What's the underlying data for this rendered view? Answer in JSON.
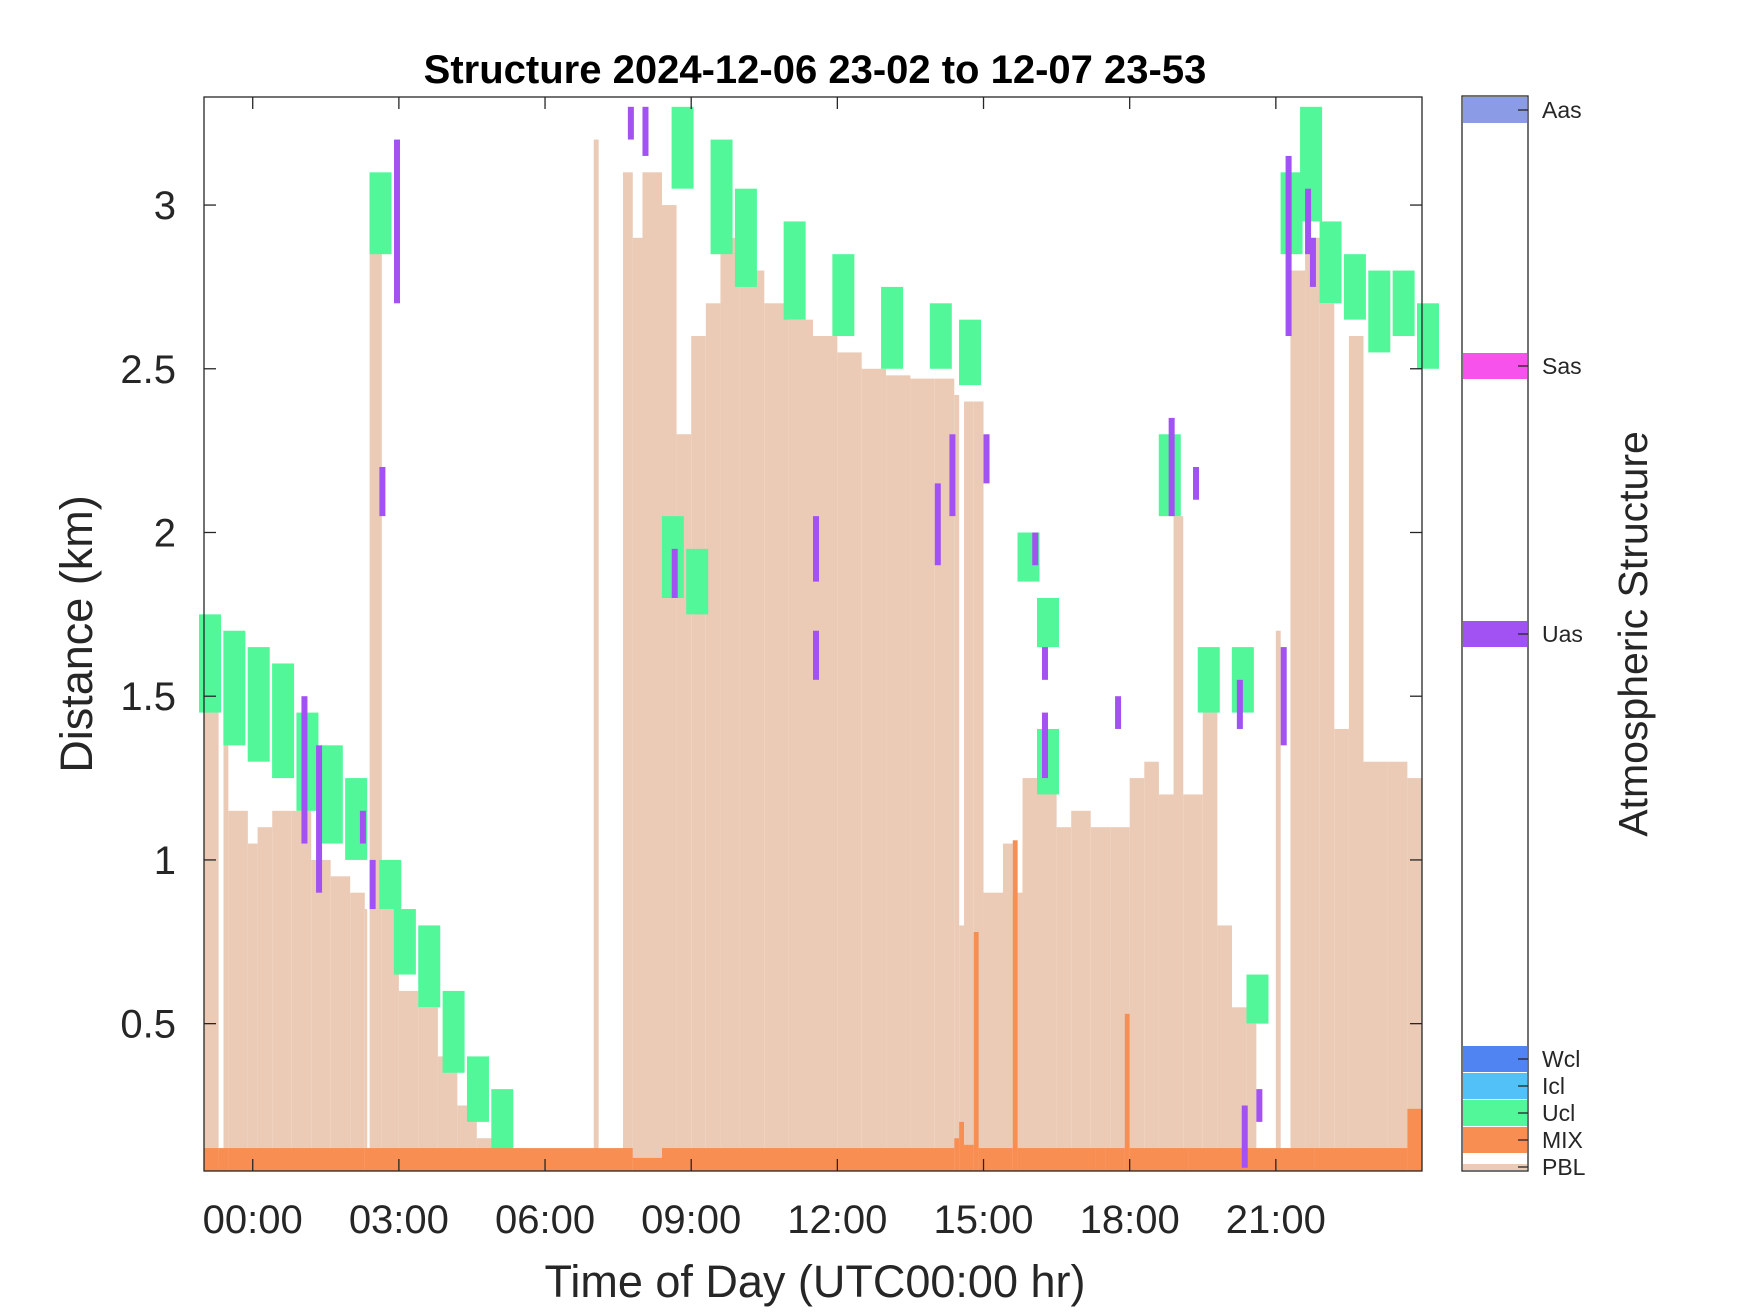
{
  "chart_data": {
    "type": "area",
    "title": "Structure 2024-12-06 23-02 to 12-07 23-53",
    "xlabel": "Time of Day (UTC00:00 hr)",
    "ylabel": "Distance (km)",
    "colorbar_label": "Atmospheric Structure",
    "x_units": "hours since 2024-12-07 00:00 UTC",
    "xlim": [
      -1.0,
      24.0
    ],
    "ylim": [
      0.05,
      3.33
    ],
    "x_ticks": [
      0,
      3,
      6,
      9,
      12,
      15,
      18,
      21
    ],
    "x_tick_labels": [
      "00:00",
      "03:00",
      "06:00",
      "09:00",
      "12:00",
      "15:00",
      "18:00",
      "21:00"
    ],
    "y_ticks": [
      0.5,
      1,
      1.5,
      2,
      2.5,
      3
    ],
    "y_tick_labels": [
      "0.5",
      "1",
      "1.5",
      "2",
      "2.5",
      "3"
    ],
    "legend_placement": "right colorbar",
    "classes": [
      {
        "name": "PBL",
        "color": "#EBCBB6"
      },
      {
        "name": "MIX",
        "color": "#F88E52"
      },
      {
        "name": "Ucl",
        "color": "#52F79A"
      },
      {
        "name": "Icl",
        "color": "#52C1F7"
      },
      {
        "name": "Wcl",
        "color": "#5084F2"
      },
      {
        "name": "Uas",
        "color": "#A252F2"
      },
      {
        "name": "Sas",
        "color": "#F752EB"
      },
      {
        "name": "Aas",
        "color": "#8C9BE6"
      }
    ],
    "pbl_top_km": [
      [
        -1.0,
        1.55
      ],
      [
        -0.7,
        0.1
      ],
      [
        -0.6,
        1.5
      ],
      [
        -0.5,
        1.15
      ],
      [
        -0.1,
        1.05
      ],
      [
        0.1,
        1.1
      ],
      [
        0.4,
        1.15
      ],
      [
        0.8,
        1.15
      ],
      [
        1.2,
        1.0
      ],
      [
        1.6,
        0.95
      ],
      [
        2.0,
        0.9
      ],
      [
        2.3,
        0.85
      ],
      [
        2.35,
        0.1
      ],
      [
        2.4,
        3.0
      ],
      [
        2.65,
        0.9
      ],
      [
        3.0,
        0.6
      ],
      [
        3.4,
        0.55
      ],
      [
        3.8,
        0.4
      ],
      [
        4.2,
        0.25
      ],
      [
        4.6,
        0.15
      ],
      [
        5.0,
        0.12
      ],
      [
        5.5,
        0.07
      ],
      [
        5.8,
        0.06
      ],
      [
        6.0,
        null
      ],
      [
        7.0,
        3.2
      ],
      [
        7.1,
        null
      ],
      [
        7.6,
        3.1
      ],
      [
        7.8,
        2.9
      ],
      [
        8.0,
        3.1
      ],
      [
        8.4,
        3.0
      ],
      [
        8.7,
        2.3
      ],
      [
        9.0,
        2.6
      ],
      [
        9.3,
        2.7
      ],
      [
        9.6,
        2.9
      ],
      [
        10.0,
        2.8
      ],
      [
        10.5,
        2.7
      ],
      [
        11.0,
        2.65
      ],
      [
        11.5,
        2.6
      ],
      [
        12.0,
        2.55
      ],
      [
        12.5,
        2.5
      ],
      [
        13.0,
        2.48
      ],
      [
        13.5,
        2.47
      ],
      [
        14.0,
        2.47
      ],
      [
        14.4,
        2.42
      ],
      [
        14.5,
        0.8
      ],
      [
        14.6,
        2.4
      ],
      [
        14.8,
        2.4
      ],
      [
        15.0,
        0.9
      ],
      [
        15.4,
        1.05
      ],
      [
        15.6,
        0.9
      ],
      [
        15.8,
        1.25
      ],
      [
        16.2,
        1.35
      ],
      [
        16.5,
        1.1
      ],
      [
        16.8,
        1.15
      ],
      [
        17.2,
        1.1
      ],
      [
        17.6,
        1.1
      ],
      [
        18.0,
        1.25
      ],
      [
        18.3,
        1.3
      ],
      [
        18.6,
        1.2
      ],
      [
        18.9,
        2.05
      ],
      [
        19.1,
        1.2
      ],
      [
        19.5,
        1.5
      ],
      [
        19.8,
        0.8
      ],
      [
        20.1,
        0.55
      ],
      [
        20.4,
        0.5
      ],
      [
        20.6,
        0.1
      ],
      [
        20.8,
        0.1
      ],
      [
        21.0,
        1.7
      ],
      [
        21.1,
        0.1
      ],
      [
        21.3,
        2.8
      ],
      [
        21.6,
        2.9
      ],
      [
        21.9,
        2.7
      ],
      [
        22.2,
        1.4
      ],
      [
        22.5,
        2.6
      ],
      [
        22.8,
        1.3
      ],
      [
        23.3,
        1.3
      ],
      [
        23.7,
        1.25
      ],
      [
        24.0,
        1.2
      ]
    ],
    "mix_top_km": [
      [
        -1.0,
        0.12
      ],
      [
        -0.7,
        0.12
      ],
      [
        -0.5,
        0.12
      ],
      [
        2.3,
        0.12
      ],
      [
        3.7,
        0.12
      ],
      [
        7.8,
        0.09
      ],
      [
        8.4,
        0.12
      ],
      [
        14.4,
        0.15
      ],
      [
        14.5,
        0.2
      ],
      [
        14.6,
        0.13
      ],
      [
        14.8,
        0.78
      ],
      [
        14.9,
        0.12
      ],
      [
        15.6,
        1.06
      ],
      [
        15.7,
        0.12
      ],
      [
        17.3,
        0.12
      ],
      [
        17.5,
        0.12
      ],
      [
        17.9,
        0.53
      ],
      [
        18.0,
        0.12
      ],
      [
        19.2,
        0.12
      ],
      [
        20.4,
        0.12
      ],
      [
        21.8,
        0.12
      ],
      [
        23.7,
        0.24
      ],
      [
        24.0,
        0.12
      ]
    ],
    "ucl_bands_km": [
      [
        -1.0,
        1.45,
        1.75
      ],
      [
        -0.5,
        1.35,
        1.7
      ],
      [
        0.0,
        1.3,
        1.65
      ],
      [
        0.5,
        1.25,
        1.6
      ],
      [
        1.0,
        1.15,
        1.45
      ],
      [
        1.5,
        1.05,
        1.35
      ],
      [
        2.0,
        1.0,
        1.25
      ],
      [
        2.5,
        2.85,
        3.1
      ],
      [
        2.7,
        0.85,
        1.0
      ],
      [
        3.0,
        0.65,
        0.85
      ],
      [
        3.5,
        0.55,
        0.8
      ],
      [
        4.0,
        0.35,
        0.6
      ],
      [
        4.5,
        0.2,
        0.4
      ],
      [
        5.0,
        0.1,
        0.3
      ],
      [
        8.5,
        1.8,
        2.05
      ],
      [
        8.7,
        3.05,
        3.3
      ],
      [
        9.0,
        1.75,
        1.95
      ],
      [
        9.5,
        2.85,
        3.2
      ],
      [
        10.0,
        2.75,
        3.05
      ],
      [
        11.0,
        2.65,
        2.95
      ],
      [
        12.0,
        2.6,
        2.85
      ],
      [
        13.0,
        2.5,
        2.75
      ],
      [
        14.0,
        2.5,
        2.7
      ],
      [
        14.6,
        2.45,
        2.65
      ],
      [
        15.8,
        1.85,
        2.0
      ],
      [
        16.2,
        1.65,
        1.8
      ],
      [
        16.2,
        1.2,
        1.4
      ],
      [
        18.7,
        2.05,
        2.3
      ],
      [
        19.5,
        1.45,
        1.65
      ],
      [
        20.2,
        1.45,
        1.65
      ],
      [
        20.5,
        0.5,
        0.65
      ],
      [
        21.2,
        2.85,
        3.1
      ],
      [
        21.6,
        2.95,
        3.3
      ],
      [
        22.0,
        2.7,
        2.95
      ],
      [
        22.5,
        2.65,
        2.85
      ],
      [
        23.0,
        2.55,
        2.8
      ],
      [
        23.5,
        2.6,
        2.8
      ],
      [
        24.0,
        2.5,
        2.7
      ]
    ],
    "uas_segments_km": [
      [
        1.0,
        1.05,
        1.5
      ],
      [
        1.3,
        0.9,
        1.35
      ],
      [
        2.2,
        1.05,
        1.15
      ],
      [
        2.4,
        0.85,
        1.0
      ],
      [
        2.6,
        2.05,
        2.2
      ],
      [
        2.9,
        2.7,
        3.2
      ],
      [
        7.7,
        3.2,
        3.3
      ],
      [
        8.0,
        3.15,
        3.3
      ],
      [
        8.6,
        1.8,
        1.95
      ],
      [
        11.5,
        1.55,
        1.7
      ],
      [
        11.5,
        1.85,
        2.05
      ],
      [
        14.0,
        1.9,
        2.15
      ],
      [
        14.3,
        2.05,
        2.3
      ],
      [
        15.0,
        2.15,
        2.3
      ],
      [
        16.0,
        1.9,
        2.0
      ],
      [
        16.2,
        1.25,
        1.45
      ],
      [
        16.2,
        1.55,
        1.65
      ],
      [
        17.7,
        1.4,
        1.5
      ],
      [
        18.8,
        2.05,
        2.35
      ],
      [
        19.3,
        2.1,
        2.2
      ],
      [
        20.2,
        1.4,
        1.55
      ],
      [
        20.3,
        0.06,
        0.25
      ],
      [
        20.6,
        0.2,
        0.3
      ],
      [
        21.1,
        1.35,
        1.65
      ],
      [
        21.2,
        2.6,
        3.15
      ],
      [
        21.6,
        2.85,
        3.05
      ],
      [
        21.7,
        2.75,
        2.9
      ]
    ]
  }
}
